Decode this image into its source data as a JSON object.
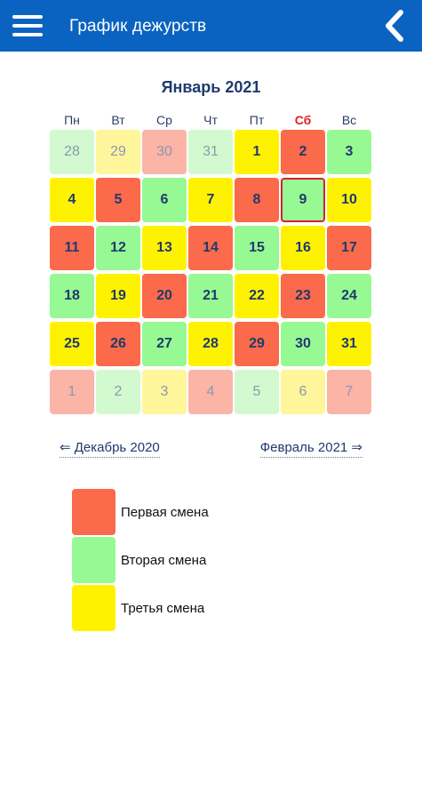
{
  "app": {
    "title": "График дежурств"
  },
  "colors": {
    "appbar": "#0a63c0",
    "first_shift": "#fb6a4b",
    "second_shift": "#97f993",
    "third_shift": "#fff200",
    "today_border": "#d8222a"
  },
  "icons": {
    "menu": "hamburger-menu-icon",
    "back": "chevron-left-icon"
  },
  "calendar": {
    "month_title": "Январь 2021",
    "weekdays": [
      "Пн",
      "Вт",
      "Ср",
      "Чт",
      "Пт",
      "Сб",
      "Вс"
    ],
    "highlight_weekday_index": 5,
    "days": [
      {
        "day": "28",
        "shift": "green",
        "outside": true
      },
      {
        "day": "29",
        "shift": "yellow",
        "outside": true
      },
      {
        "day": "30",
        "shift": "red",
        "outside": true
      },
      {
        "day": "31",
        "shift": "green",
        "outside": true
      },
      {
        "day": "1",
        "shift": "yellow",
        "outside": false
      },
      {
        "day": "2",
        "shift": "red",
        "outside": false
      },
      {
        "day": "3",
        "shift": "green",
        "outside": false
      },
      {
        "day": "4",
        "shift": "yellow",
        "outside": false
      },
      {
        "day": "5",
        "shift": "red",
        "outside": false
      },
      {
        "day": "6",
        "shift": "green",
        "outside": false
      },
      {
        "day": "7",
        "shift": "yellow",
        "outside": false
      },
      {
        "day": "8",
        "shift": "red",
        "outside": false
      },
      {
        "day": "9",
        "shift": "green",
        "outside": false,
        "today": true
      },
      {
        "day": "10",
        "shift": "yellow",
        "outside": false
      },
      {
        "day": "11",
        "shift": "red",
        "outside": false
      },
      {
        "day": "12",
        "shift": "green",
        "outside": false
      },
      {
        "day": "13",
        "shift": "yellow",
        "outside": false
      },
      {
        "day": "14",
        "shift": "red",
        "outside": false
      },
      {
        "day": "15",
        "shift": "green",
        "outside": false
      },
      {
        "day": "16",
        "shift": "yellow",
        "outside": false
      },
      {
        "day": "17",
        "shift": "red",
        "outside": false
      },
      {
        "day": "18",
        "shift": "green",
        "outside": false
      },
      {
        "day": "19",
        "shift": "yellow",
        "outside": false
      },
      {
        "day": "20",
        "shift": "red",
        "outside": false
      },
      {
        "day": "21",
        "shift": "green",
        "outside": false
      },
      {
        "day": "22",
        "shift": "yellow",
        "outside": false
      },
      {
        "day": "23",
        "shift": "red",
        "outside": false
      },
      {
        "day": "24",
        "shift": "green",
        "outside": false
      },
      {
        "day": "25",
        "shift": "yellow",
        "outside": false
      },
      {
        "day": "26",
        "shift": "red",
        "outside": false
      },
      {
        "day": "27",
        "shift": "green",
        "outside": false
      },
      {
        "day": "28",
        "shift": "yellow",
        "outside": false
      },
      {
        "day": "29",
        "shift": "red",
        "outside": false
      },
      {
        "day": "30",
        "shift": "green",
        "outside": false
      },
      {
        "day": "31",
        "shift": "yellow",
        "outside": false
      },
      {
        "day": "1",
        "shift": "red",
        "outside": true
      },
      {
        "day": "2",
        "shift": "green",
        "outside": true
      },
      {
        "day": "3",
        "shift": "yellow",
        "outside": true
      },
      {
        "day": "4",
        "shift": "red",
        "outside": true
      },
      {
        "day": "5",
        "shift": "green",
        "outside": true
      },
      {
        "day": "6",
        "shift": "yellow",
        "outside": true
      },
      {
        "day": "7",
        "shift": "red",
        "outside": true
      }
    ]
  },
  "navigation": {
    "prev_label": "⇐ Декабрь 2020",
    "next_label": "Февраль 2021 ⇒"
  },
  "legend": [
    {
      "label": "Первая смена",
      "shift": "red"
    },
    {
      "label": "Вторая смена",
      "shift": "green"
    },
    {
      "label": "Третья смена",
      "shift": "yellow"
    }
  ]
}
